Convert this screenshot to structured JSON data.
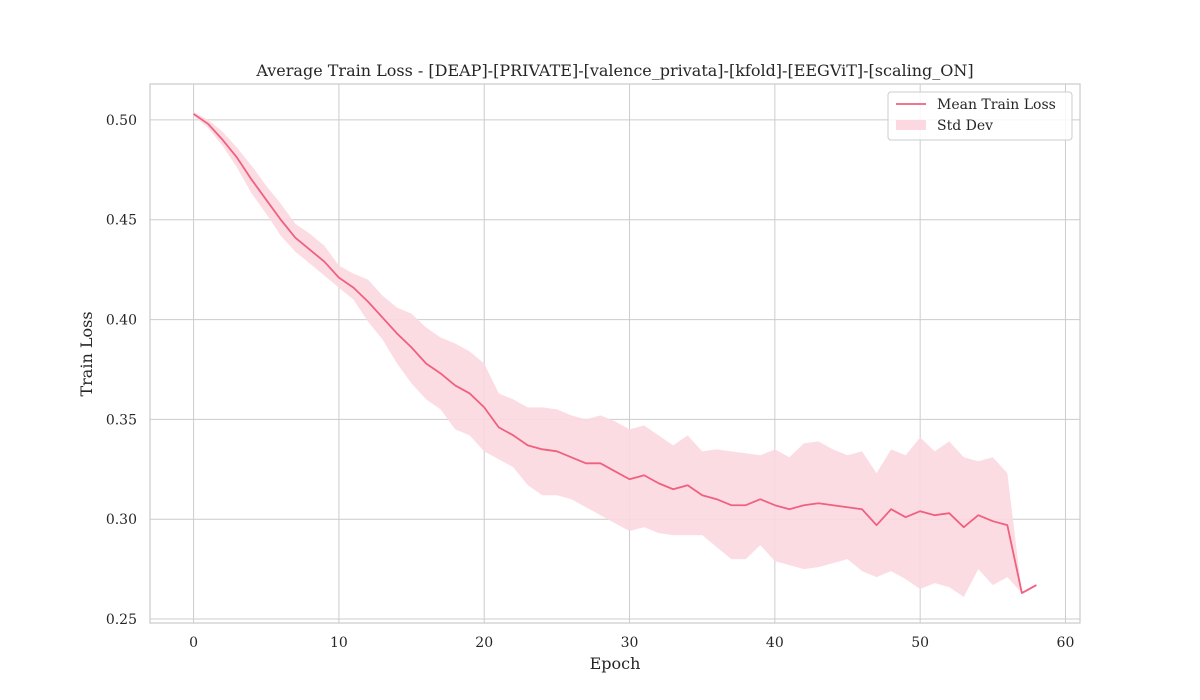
{
  "chart_data": {
    "type": "line",
    "title": "Average Train Loss - [DEAP]-[PRIVATE]-[valence_privata]-[kfold]-[EEGViT]-[scaling_ON]",
    "xlabel": "Epoch",
    "ylabel": "Train Loss",
    "xlim": [
      -3,
      61
    ],
    "ylim": [
      0.248,
      0.518
    ],
    "xticks": [
      0,
      10,
      20,
      30,
      40,
      50,
      60
    ],
    "yticks": [
      0.25,
      0.3,
      0.35,
      0.4,
      0.45,
      0.5
    ],
    "yticks_labels": [
      "0.25",
      "0.30",
      "0.35",
      "0.40",
      "0.45",
      "0.50"
    ],
    "grid": true,
    "legend_position": "top-right",
    "colors": {
      "mean_line": "#f0607f",
      "std_band": "#fcd8e0",
      "grid": "#cccccc",
      "frame": "#cccccc"
    },
    "x": [
      0,
      1,
      2,
      3,
      4,
      5,
      6,
      7,
      8,
      9,
      10,
      11,
      12,
      13,
      14,
      15,
      16,
      17,
      18,
      19,
      20,
      21,
      22,
      23,
      24,
      25,
      26,
      27,
      28,
      29,
      30,
      31,
      32,
      33,
      34,
      35,
      36,
      37,
      38,
      39,
      40,
      41,
      42,
      43,
      44,
      45,
      46,
      47,
      48,
      49,
      50,
      51,
      52,
      53,
      54,
      55,
      56,
      57,
      58
    ],
    "series": [
      {
        "name": "Mean Train Loss",
        "kind": "line",
        "values": [
          0.503,
          0.498,
          0.49,
          0.481,
          0.47,
          0.46,
          0.45,
          0.441,
          0.435,
          0.429,
          0.421,
          0.416,
          0.409,
          0.401,
          0.393,
          0.386,
          0.378,
          0.373,
          0.367,
          0.363,
          0.356,
          0.346,
          0.342,
          0.337,
          0.335,
          0.334,
          0.331,
          0.328,
          0.328,
          0.324,
          0.32,
          0.322,
          0.318,
          0.315,
          0.317,
          0.312,
          0.31,
          0.307,
          0.307,
          0.31,
          0.307,
          0.305,
          0.307,
          0.308,
          0.307,
          0.306,
          0.305,
          0.297,
          0.305,
          0.301,
          0.304,
          0.302,
          0.303,
          0.296,
          0.302,
          0.299,
          0.297,
          0.263,
          0.267
        ]
      },
      {
        "name": "Std Dev",
        "kind": "band",
        "upper": [
          0.504,
          0.5,
          0.494,
          0.486,
          0.477,
          0.467,
          0.458,
          0.448,
          0.443,
          0.437,
          0.427,
          0.423,
          0.42,
          0.412,
          0.406,
          0.403,
          0.396,
          0.391,
          0.388,
          0.384,
          0.378,
          0.363,
          0.36,
          0.356,
          0.356,
          0.355,
          0.352,
          0.35,
          0.352,
          0.349,
          0.345,
          0.347,
          0.342,
          0.337,
          0.342,
          0.334,
          0.335,
          0.334,
          0.333,
          0.332,
          0.335,
          0.331,
          0.338,
          0.339,
          0.335,
          0.332,
          0.334,
          0.323,
          0.335,
          0.332,
          0.341,
          0.334,
          0.339,
          0.331,
          0.329,
          0.331,
          0.323,
          0.263,
          0.267
        ],
        "lower": [
          0.502,
          0.496,
          0.487,
          0.476,
          0.463,
          0.453,
          0.442,
          0.434,
          0.428,
          0.422,
          0.416,
          0.41,
          0.399,
          0.39,
          0.378,
          0.368,
          0.36,
          0.355,
          0.345,
          0.342,
          0.334,
          0.33,
          0.326,
          0.317,
          0.312,
          0.312,
          0.31,
          0.306,
          0.302,
          0.298,
          0.294,
          0.296,
          0.293,
          0.292,
          0.292,
          0.292,
          0.286,
          0.28,
          0.28,
          0.287,
          0.279,
          0.277,
          0.275,
          0.276,
          0.278,
          0.28,
          0.274,
          0.271,
          0.274,
          0.27,
          0.265,
          0.268,
          0.266,
          0.261,
          0.275,
          0.267,
          0.271,
          0.263,
          0.267
        ]
      }
    ]
  }
}
